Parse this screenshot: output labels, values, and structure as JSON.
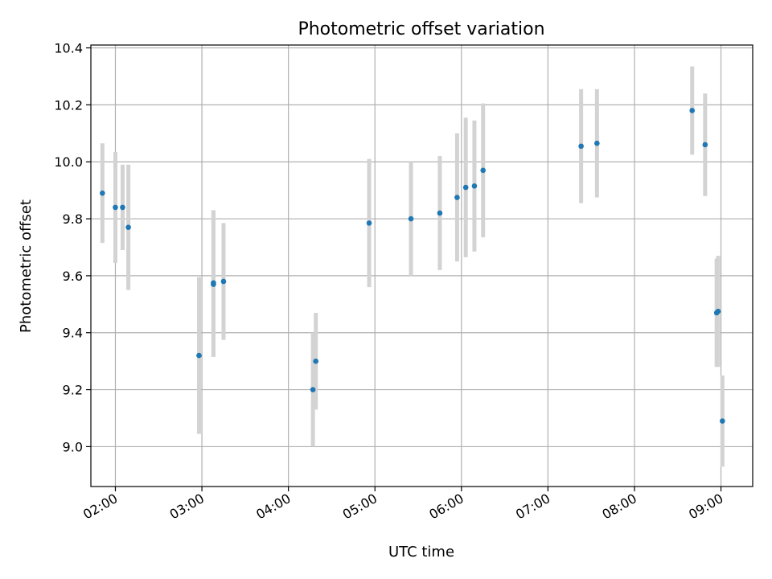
{
  "colors": {
    "point": "#1f77b4",
    "errorbar": "#d3d3d3",
    "grid": "#b0b0b0"
  },
  "chart_data": {
    "type": "scatter",
    "title": "Photometric offset variation",
    "xlabel": "UTC time",
    "ylabel": "Photometric offset",
    "grid": true,
    "legend": "none",
    "x_unit": "UTC time (hh:mm)",
    "xlim": [
      "01:43",
      "09:22"
    ],
    "ylim": [
      8.86,
      10.41
    ],
    "x_ticks": [
      "02:00",
      "03:00",
      "04:00",
      "05:00",
      "06:00",
      "07:00",
      "08:00",
      "09:00"
    ],
    "y_ticks": [
      "9.0",
      "9.2",
      "9.4",
      "9.6",
      "9.8",
      "10.0",
      "10.2",
      "10.4"
    ],
    "series": [
      {
        "x": [
          "01:51",
          "02:00",
          "02:05",
          "02:09",
          "02:58",
          "03:08",
          "03:08",
          "03:15",
          "04:17",
          "04:19",
          "04:56",
          "05:25",
          "05:45",
          "05:57",
          "06:03",
          "06:09",
          "06:15",
          "07:23",
          "07:34",
          "08:40",
          "08:49",
          "08:57",
          "08:58",
          "09:01"
        ],
        "y": [
          9.89,
          9.84,
          9.84,
          9.77,
          9.32,
          9.57,
          9.575,
          9.58,
          9.2,
          9.3,
          9.785,
          9.8,
          9.82,
          9.875,
          9.91,
          9.915,
          9.97,
          10.055,
          10.065,
          10.18,
          10.06,
          9.47,
          9.475,
          9.09
        ],
        "err": [
          0.175,
          0.195,
          0.15,
          0.22,
          0.275,
          0.255,
          0.255,
          0.205,
          0.2,
          0.17,
          0.225,
          0.2,
          0.2,
          0.225,
          0.245,
          0.23,
          0.235,
          0.2,
          0.19,
          0.155,
          0.18,
          0.19,
          0.195,
          0.16
        ]
      }
    ]
  }
}
